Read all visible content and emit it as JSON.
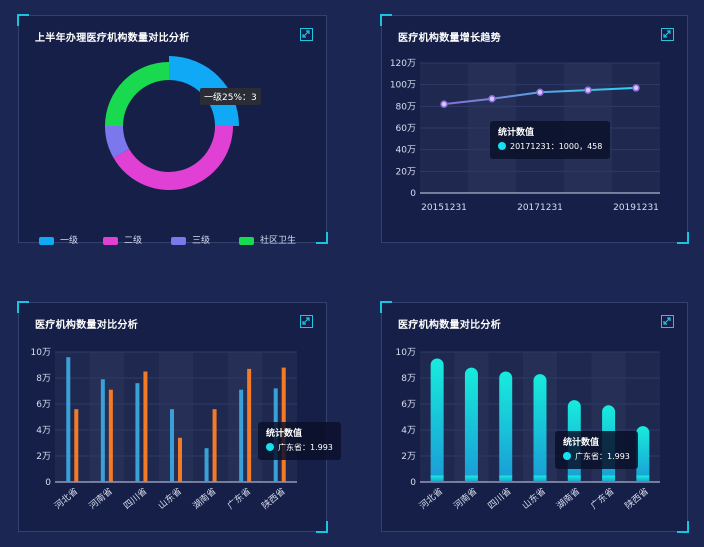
{
  "panels": {
    "p1": {
      "title": "上半年办理医疗机构数量对比分析"
    },
    "p2": {
      "title": "医疗机构数量增长趋势"
    },
    "p3": {
      "title": "医疗机构数量对比分析"
    },
    "p4": {
      "title": "医疗机构数量对比分析"
    }
  },
  "tooltips": {
    "pie": "一级25%：3",
    "line": {
      "title": "统计数值",
      "text": "20171231：1000，458"
    },
    "bar": {
      "title": "统计数值",
      "text": "广东省：1.993"
    },
    "bar2": {
      "title": "统计数值",
      "text": "广东省：1.993"
    }
  },
  "chart_data": [
    {
      "type": "pie",
      "title": "上半年办理医疗机构数量对比分析",
      "categories": [
        "一级",
        "二级",
        "三级",
        "社区卫生"
      ],
      "values": [
        3,
        5,
        1,
        3
      ],
      "colors": [
        "#10a9f5",
        "#e040d4",
        "#7a78ec",
        "#19d94e"
      ],
      "legend": "bottom"
    },
    {
      "type": "line",
      "title": "医疗机构数量增长趋势",
      "x": [
        "20151231",
        "20161231",
        "20171231",
        "20181231",
        "20191231"
      ],
      "x_tick_labels": [
        "20151231",
        "20171231",
        "20191231"
      ],
      "values": [
        82,
        87,
        93,
        95,
        97
      ],
      "y_ticks": [
        "0",
        "20万",
        "40万",
        "60万",
        "80万",
        "100万",
        "120万"
      ],
      "ylim": [
        0,
        120
      ],
      "grid": true
    },
    {
      "type": "bar",
      "title": "医疗机构数量对比分析",
      "categories": [
        "河北省",
        "河南省",
        "四川省",
        "山东省",
        "湖南省",
        "广东省",
        "陕西省"
      ],
      "series": [
        {
          "values": [
            9.6,
            7.9,
            7.6,
            5.6,
            2.6,
            7.1,
            7.2
          ],
          "color": "#3aa0d8"
        },
        {
          "values": [
            5.6,
            7.1,
            8.5,
            3.4,
            5.6,
            8.7,
            8.8
          ],
          "color": "#f57a26"
        }
      ],
      "y_ticks": [
        "0",
        "2万",
        "4万",
        "6万",
        "8万",
        "10万"
      ],
      "ylim": [
        0,
        10
      ],
      "grid": true
    },
    {
      "type": "bar",
      "title": "医疗机构数量对比分析",
      "categories": [
        "河北省",
        "河南省",
        "四川省",
        "山东省",
        "湖南省",
        "广东省",
        "陕西省"
      ],
      "values": [
        9.5,
        8.8,
        8.5,
        8.3,
        6.3,
        5.9,
        4.3
      ],
      "color": "#13e0da",
      "y_ticks": [
        "0",
        "2万",
        "4万",
        "6万",
        "8万",
        "10万"
      ],
      "ylim": [
        0,
        10
      ],
      "grid": true
    }
  ]
}
